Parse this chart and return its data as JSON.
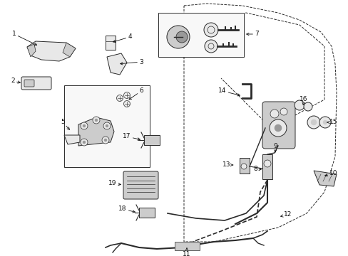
{
  "bg_color": "#ffffff",
  "fig_width": 4.89,
  "fig_height": 3.6,
  "dpi": 100,
  "line_color": "#2a2a2a",
  "fill_light": "#e8e8e8",
  "fill_mid": "#cccccc",
  "fill_dark": "#999999"
}
